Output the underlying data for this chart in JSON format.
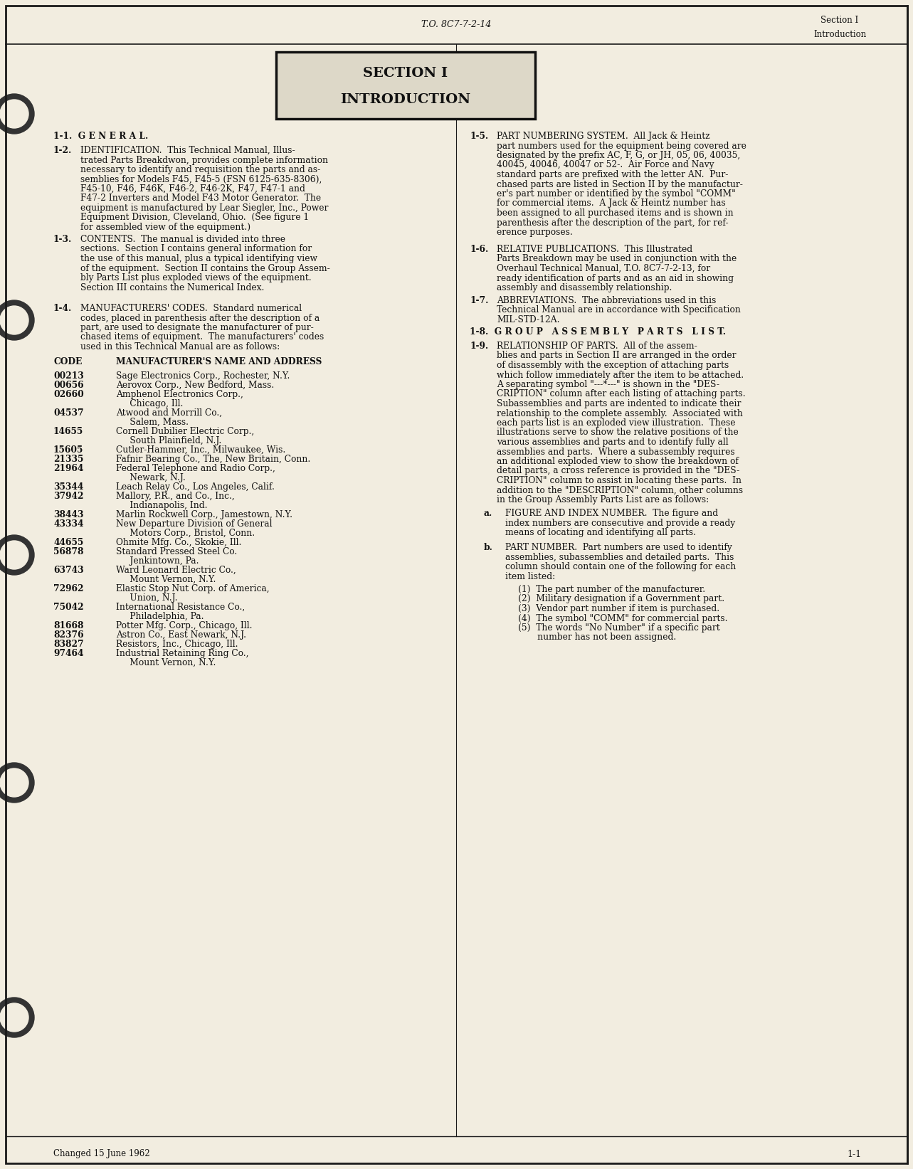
{
  "page_bg": "#f2ede0",
  "border_color": "#1a1a1a",
  "text_color": "#111111",
  "header_center": "T.O. 8C7-7-2-14",
  "header_right_line1": "Section I",
  "header_right_line2": "Introduction",
  "section_box_title1": "SECTION I",
  "section_box_title2": "INTRODUCTION",
  "footer_left": "Changed 15 June 1962",
  "footer_right": "1-1"
}
